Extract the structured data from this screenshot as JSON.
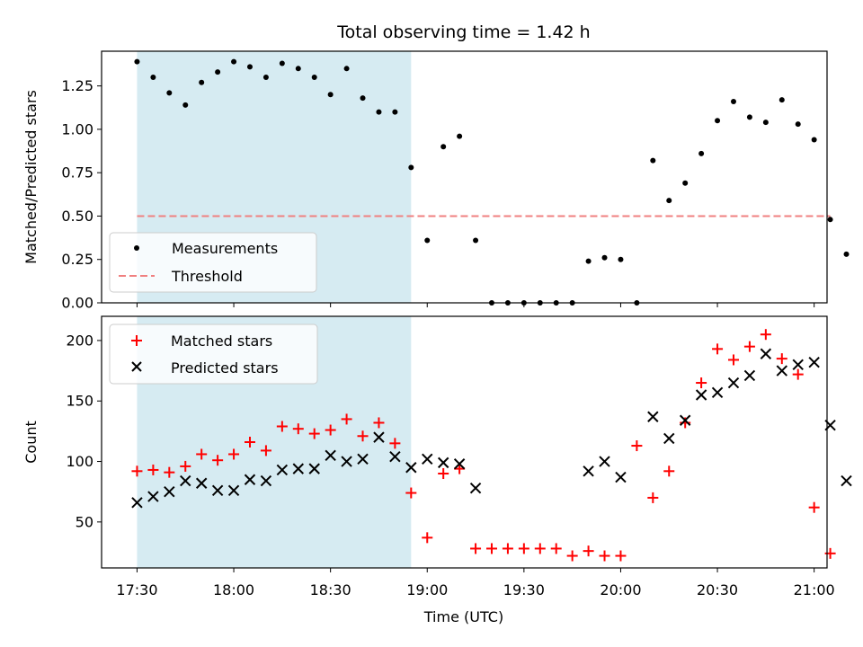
{
  "chart_data": {
    "type": "scatter",
    "title": "Total observing time = 1.42 h",
    "xlabel": "Time (UTC)",
    "xlim": [
      "17:19",
      "21:04"
    ],
    "xticks": [
      "17:30",
      "18:00",
      "18:30",
      "19:00",
      "19:30",
      "20:00",
      "20:30",
      "21:00"
    ],
    "shaded_interval": [
      "17:30",
      "18:55"
    ],
    "colors": {
      "measurements": "#000000",
      "threshold": "#f08080",
      "matched": "#ff0000",
      "predicted": "#000000",
      "shade": "#add8e6"
    },
    "panels": [
      {
        "ylabel": "Matched/Predicted stars",
        "ylim": [
          0,
          1.45
        ],
        "yticks": [
          "0.00",
          "0.25",
          "0.50",
          "0.75",
          "1.00",
          "1.25"
        ],
        "legend_position": "lower-left",
        "threshold": {
          "name": "Threshold",
          "value": 0.5,
          "x_range": [
            "17:30",
            "21:05"
          ]
        },
        "series": [
          {
            "name": "Measurements",
            "points": [
              [
                "17:30",
                1.39
              ],
              [
                "17:35",
                1.3
              ],
              [
                "17:40",
                1.21
              ],
              [
                "17:45",
                1.14
              ],
              [
                "17:50",
                1.27
              ],
              [
                "17:55",
                1.33
              ],
              [
                "18:00",
                1.39
              ],
              [
                "18:05",
                1.36
              ],
              [
                "18:10",
                1.3
              ],
              [
                "18:15",
                1.38
              ],
              [
                "18:20",
                1.35
              ],
              [
                "18:25",
                1.3
              ],
              [
                "18:30",
                1.2
              ],
              [
                "18:35",
                1.35
              ],
              [
                "18:40",
                1.18
              ],
              [
                "18:45",
                1.1
              ],
              [
                "18:50",
                1.1
              ],
              [
                "18:55",
                0.78
              ],
              [
                "19:00",
                0.36
              ],
              [
                "19:05",
                0.9
              ],
              [
                "19:10",
                0.96
              ],
              [
                "19:15",
                0.36
              ],
              [
                "19:20",
                0.0
              ],
              [
                "19:25",
                0.0
              ],
              [
                "19:30",
                0.0
              ],
              [
                "19:35",
                0.0
              ],
              [
                "19:40",
                0.0
              ],
              [
                "19:45",
                0.0
              ],
              [
                "19:50",
                0.24
              ],
              [
                "19:55",
                0.26
              ],
              [
                "20:00",
                0.25
              ],
              [
                "20:05",
                0.0
              ],
              [
                "20:10",
                0.82
              ],
              [
                "20:15",
                0.59
              ],
              [
                "20:20",
                0.69
              ],
              [
                "20:25",
                0.86
              ],
              [
                "20:30",
                1.05
              ],
              [
                "20:35",
                1.16
              ],
              [
                "20:40",
                1.07
              ],
              [
                "20:45",
                1.04
              ],
              [
                "20:50",
                1.17
              ],
              [
                "20:55",
                1.03
              ],
              [
                "21:00",
                0.94
              ],
              [
                "21:05",
                0.48
              ],
              [
                "21:10",
                0.28
              ]
            ]
          }
        ]
      },
      {
        "ylabel": "Count",
        "ylim": [
          12,
          220
        ],
        "yticks": [
          "50",
          "100",
          "150",
          "200"
        ],
        "legend_position": "upper-left",
        "series": [
          {
            "name": "Matched stars",
            "points": [
              [
                "17:30",
                92
              ],
              [
                "17:35",
                93
              ],
              [
                "17:40",
                91
              ],
              [
                "17:45",
                96
              ],
              [
                "17:50",
                106
              ],
              [
                "17:55",
                101
              ],
              [
                "18:00",
                106
              ],
              [
                "18:05",
                116
              ],
              [
                "18:10",
                109
              ],
              [
                "18:15",
                129
              ],
              [
                "18:20",
                127
              ],
              [
                "18:25",
                123
              ],
              [
                "18:30",
                126
              ],
              [
                "18:35",
                135
              ],
              [
                "18:40",
                121
              ],
              [
                "18:45",
                132
              ],
              [
                "18:50",
                115
              ],
              [
                "18:55",
                74
              ],
              [
                "19:00",
                37
              ],
              [
                "19:05",
                90
              ],
              [
                "19:10",
                94
              ],
              [
                "19:15",
                28
              ],
              [
                "19:20",
                28
              ],
              [
                "19:25",
                28
              ],
              [
                "19:30",
                28
              ],
              [
                "19:35",
                28
              ],
              [
                "19:40",
                28
              ],
              [
                "19:45",
                22
              ],
              [
                "19:50",
                26
              ],
              [
                "19:55",
                22
              ],
              [
                "20:00",
                22
              ],
              [
                "20:05",
                113
              ],
              [
                "20:10",
                70
              ],
              [
                "20:15",
                92
              ],
              [
                "20:20",
                132
              ],
              [
                "20:25",
                165
              ],
              [
                "20:30",
                193
              ],
              [
                "20:35",
                184
              ],
              [
                "20:40",
                195
              ],
              [
                "20:45",
                205
              ],
              [
                "20:50",
                185
              ],
              [
                "20:55",
                172
              ],
              [
                "21:00",
                62
              ],
              [
                "21:05",
                24
              ]
            ]
          },
          {
            "name": "Predicted stars",
            "points": [
              [
                "17:30",
                66
              ],
              [
                "17:35",
                71
              ],
              [
                "17:40",
                75
              ],
              [
                "17:45",
                84
              ],
              [
                "17:50",
                82
              ],
              [
                "17:55",
                76
              ],
              [
                "18:00",
                76
              ],
              [
                "18:05",
                85
              ],
              [
                "18:10",
                84
              ],
              [
                "18:15",
                93
              ],
              [
                "18:20",
                94
              ],
              [
                "18:25",
                94
              ],
              [
                "18:30",
                105
              ],
              [
                "18:35",
                100
              ],
              [
                "18:40",
                102
              ],
              [
                "18:45",
                120
              ],
              [
                "18:50",
                104
              ],
              [
                "18:55",
                95
              ],
              [
                "19:00",
                102
              ],
              [
                "19:05",
                99
              ],
              [
                "19:10",
                98
              ],
              [
                "19:15",
                78
              ],
              [
                "19:50",
                92
              ],
              [
                "19:55",
                100
              ],
              [
                "20:00",
                87
              ],
              [
                "20:10",
                137
              ],
              [
                "20:15",
                119
              ],
              [
                "20:20",
                134
              ],
              [
                "20:25",
                155
              ],
              [
                "20:30",
                157
              ],
              [
                "20:35",
                165
              ],
              [
                "20:40",
                171
              ],
              [
                "20:45",
                189
              ],
              [
                "20:50",
                175
              ],
              [
                "20:55",
                180
              ],
              [
                "21:00",
                182
              ],
              [
                "21:05",
                130
              ],
              [
                "21:10",
                84
              ]
            ]
          }
        ]
      }
    ]
  }
}
